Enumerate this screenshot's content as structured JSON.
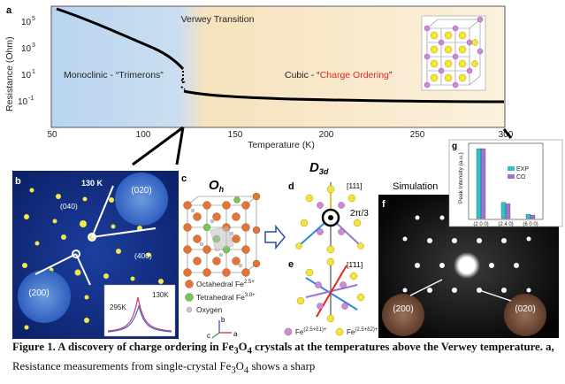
{
  "panel_a": {
    "letter": "a",
    "ylabel": "Resistance (Ohm)",
    "xlabel": "Temperature (K)",
    "x_ticks": [
      "50",
      "100",
      "150",
      "200",
      "250",
      "300"
    ],
    "y_ticks": [
      "10",
      "10",
      "10",
      "10"
    ],
    "y_exps": [
      "5",
      "3",
      "1",
      "-1"
    ],
    "label_transition": "Verwey Transition",
    "label_monoclinic": "Monoclinic - “Trimerons”",
    "label_cubic_prefix": "Cubic - “",
    "label_cubic_red": "Charge Ordering",
    "label_cubic_suffix": "”",
    "colors": {
      "blue": "#bcd6ef",
      "orange": "#f7dfb4",
      "red": "#e8231e"
    }
  },
  "panel_b": {
    "letter": "b",
    "temp": "130 K",
    "spot_020": "(020)",
    "spot_040": "(040)",
    "spot_400": "(400)",
    "spot_200": "(200)",
    "inset_295": "295K",
    "inset_130": "130K"
  },
  "panel_c": {
    "letter": "c",
    "title": "O",
    "title_sub": "h",
    "legend_oct": "Octahedral Fe",
    "legend_oct_sup": "2.5+",
    "legend_tet": "Tetrahedral Fe",
    "legend_tet_sup": "3.0+",
    "legend_oxy": "Oxygen",
    "axis_a": "a",
    "axis_b": "b",
    "axis_c": "c"
  },
  "panel_d": {
    "letter": "d",
    "title": "D",
    "title_sub": "3d",
    "dir": "[111]",
    "angle": "2π/3"
  },
  "panel_e": {
    "letter": "e",
    "dir": "[1̄11]",
    "legend1": "Fe",
    "legend1_sup": "(2.5+δ1)+",
    "legend2": "Fe",
    "legend2_sup": "(2.5+δ2)+"
  },
  "panel_f": {
    "letter": "f",
    "title": "Simulation",
    "spot_200": "(200)",
    "spot_020": "(020)"
  },
  "panel_g": {
    "letter": "g",
    "ylabel": "Peak Intensity (a.u.)",
    "legend_exp": "EXP",
    "legend_co": "CO",
    "categories": [
      "(2 0 0)",
      "(2 4 0)",
      "(6 0 0)"
    ]
  },
  "chart_data": {
    "type": "bar",
    "categories": [
      "(2 0 0)",
      "(2 4 0)",
      "(6 0 0)"
    ],
    "series": [
      {
        "name": "EXP",
        "values": [
          1.0,
          0.23,
          0.06
        ]
      },
      {
        "name": "CO",
        "values": [
          1.0,
          0.21,
          0.05
        ]
      }
    ],
    "ylabel": "Peak Intensity (a.u.)",
    "colors": {
      "EXP": "#2cc3c9",
      "CO": "#9c74d4"
    }
  },
  "caption": {
    "lead": "Figure 1. A discovery of charge ordering in Fe",
    "lead_sub1": "3",
    "lead_mid": "O",
    "lead_sub2": "4",
    "lead_rest": " crystals at the temperatures above the Verwey temperature.",
    "a_label": " a,",
    "body1": " Resistance measurements from single-crystal Fe",
    "body_sub1": "3",
    "body_mid": "O",
    "body_sub2": "4",
    "body2": " shows a sharp"
  }
}
